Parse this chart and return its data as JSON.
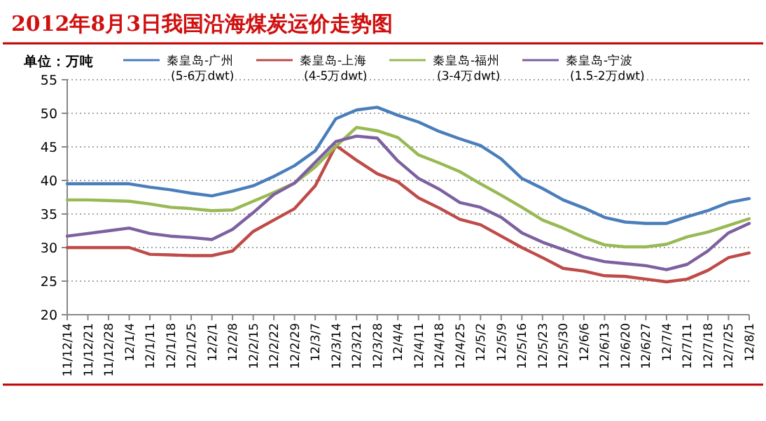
{
  "chart_data": {
    "type": "line",
    "title": "2012年8月3日我国沿海煤炭运价走势图",
    "ylabel": "单位：万吨",
    "categories": [
      "11/12/14",
      "11/12/21",
      "11/12/28",
      "12/1/4",
      "12/1/11",
      "12/1/18",
      "12/1/25",
      "12/2/1",
      "12/2/8",
      "12/2/15",
      "12/2/22",
      "12/2/29",
      "12/3/7",
      "12/3/14",
      "12/3/21",
      "12/3/28",
      "12/4/4",
      "12/4/11",
      "12/4/18",
      "12/4/25",
      "12/5/2",
      "12/5/9",
      "12/5/16",
      "12/5/23",
      "12/5/30",
      "12/6/6",
      "12/6/13",
      "12/6/20",
      "12/6/27",
      "12/7/4",
      "12/7/11",
      "12/7/18",
      "12/7/25",
      "12/8/1"
    ],
    "series": [
      {
        "name": "秦皇岛-广州 (5-6万dwt)",
        "color": "#4a7ebb",
        "values": [
          39.5,
          39.5,
          39.5,
          39.5,
          39.0,
          38.6,
          38.1,
          37.7,
          38.4,
          39.2,
          40.6,
          42.2,
          44.4,
          49.2,
          50.5,
          50.9,
          49.7,
          48.7,
          47.3,
          46.2,
          45.2,
          43.2,
          40.3,
          38.8,
          37.1,
          35.9,
          34.5,
          33.8,
          33.6,
          33.6,
          34.6,
          35.5,
          36.7,
          37.3
        ]
      },
      {
        "name": "秦皇岛-上海 (4-5万dwt)",
        "color": "#be4b48",
        "values": [
          30.0,
          30.0,
          30.0,
          30.0,
          29.0,
          28.9,
          28.8,
          28.8,
          29.5,
          32.4,
          34.1,
          35.8,
          39.2,
          45.2,
          43.0,
          41.0,
          39.8,
          37.4,
          35.9,
          34.2,
          33.4,
          31.7,
          30.0,
          28.5,
          26.9,
          26.5,
          25.8,
          25.7,
          25.3,
          24.9,
          25.3,
          26.6,
          28.5,
          29.2
        ]
      },
      {
        "name": "秦皇岛-福州 (3-4万dwt)",
        "color": "#98b954",
        "values": [
          37.1,
          37.1,
          37.0,
          36.9,
          36.5,
          36.0,
          35.8,
          35.5,
          35.6,
          36.9,
          38.2,
          39.6,
          42.0,
          45.1,
          47.9,
          47.4,
          46.4,
          43.8,
          42.6,
          41.3,
          39.5,
          37.8,
          36.0,
          34.1,
          32.9,
          31.5,
          30.4,
          30.1,
          30.1,
          30.5,
          31.6,
          32.3,
          33.3,
          34.3
        ]
      },
      {
        "name": "秦皇岛-宁波 (1.5-2万dwt)",
        "color": "#7d60a0",
        "values": [
          31.7,
          32.1,
          32.5,
          32.9,
          32.1,
          31.7,
          31.5,
          31.2,
          32.7,
          35.2,
          37.9,
          39.6,
          42.7,
          45.8,
          46.6,
          46.3,
          42.9,
          40.3,
          38.7,
          36.7,
          36.0,
          34.5,
          32.2,
          30.8,
          29.7,
          28.6,
          27.9,
          27.6,
          27.3,
          26.7,
          27.5,
          29.5,
          32.2,
          33.6
        ]
      }
    ],
    "ylim": [
      20,
      55
    ],
    "yticks": [
      20,
      25,
      30,
      35,
      40,
      45,
      50,
      55
    ],
    "grid": "y",
    "legend": "top",
    "marker": "none",
    "line_style": "solid"
  }
}
